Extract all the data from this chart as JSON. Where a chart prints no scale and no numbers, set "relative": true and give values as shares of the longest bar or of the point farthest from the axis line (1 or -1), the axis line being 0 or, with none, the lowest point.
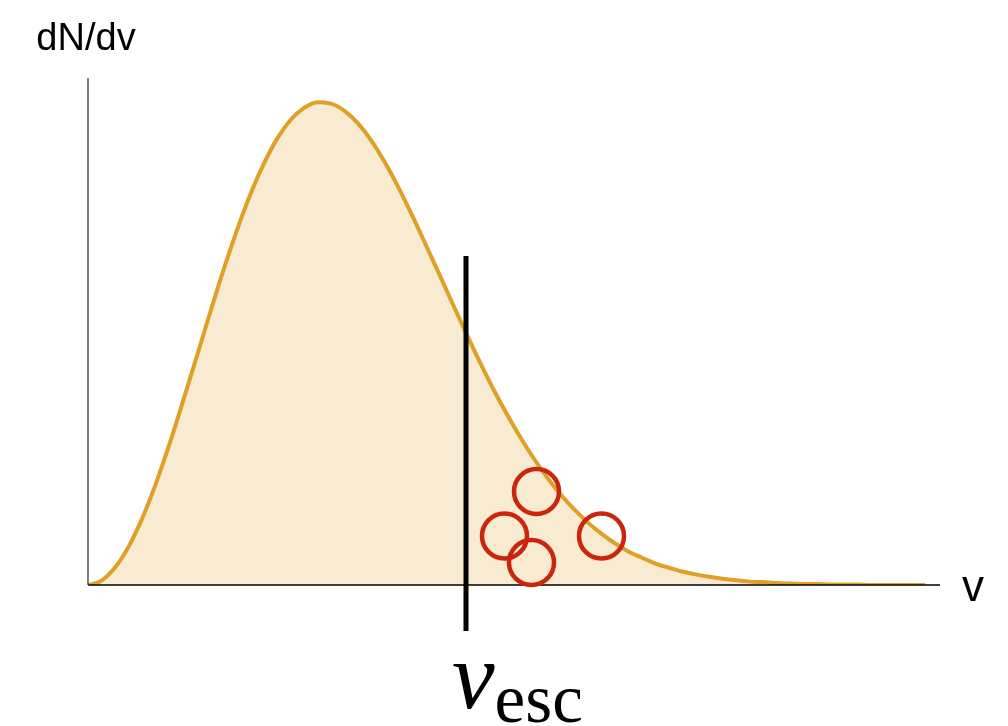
{
  "chart_data": {
    "type": "area",
    "relative": true,
    "xlabel": "v",
    "ylabel": "dN/dv",
    "categories": [
      null,
      null,
      null,
      null,
      null,
      null,
      null,
      null,
      null,
      null,
      null,
      null,
      null,
      null,
      null,
      null,
      null,
      null,
      null,
      null,
      null,
      null,
      null,
      null,
      null,
      null,
      null,
      null,
      null,
      null,
      null,
      null,
      null,
      null,
      null,
      null,
      null,
      null,
      null,
      null,
      null,
      null,
      null,
      null,
      null,
      null,
      null,
      null,
      null,
      null,
      null,
      null,
      null,
      null,
      null,
      null,
      null,
      null,
      null,
      null,
      null,
      null,
      null
    ],
    "color": "#e09f26",
    "values": [
      0,
      0.009,
      0.036,
      0.079,
      0.137,
      0.208,
      0.289,
      0.377,
      0.468,
      0.56,
      0.649,
      0.732,
      0.807,
      0.871,
      0.924,
      0.963,
      0.988,
      1.0,
      0.997,
      0.982,
      0.956,
      0.92,
      0.875,
      0.823,
      0.766,
      0.706,
      0.645,
      0.583,
      0.522,
      0.463,
      0.407,
      0.355,
      0.307,
      0.263,
      0.223,
      0.188,
      0.157,
      0.13,
      0.107,
      0.087,
      0.07,
      0.057,
      0.045,
      0.036,
      0.028,
      0.022,
      0.017,
      0.013,
      0.01,
      0.007,
      0.006,
      0.004,
      0.003,
      0.002,
      0.002,
      0.001,
      0.001,
      0.001,
      0,
      0,
      0,
      0,
      0
    ],
    "annotations": [
      "v$_{esc}$"
    ]
  }
}
